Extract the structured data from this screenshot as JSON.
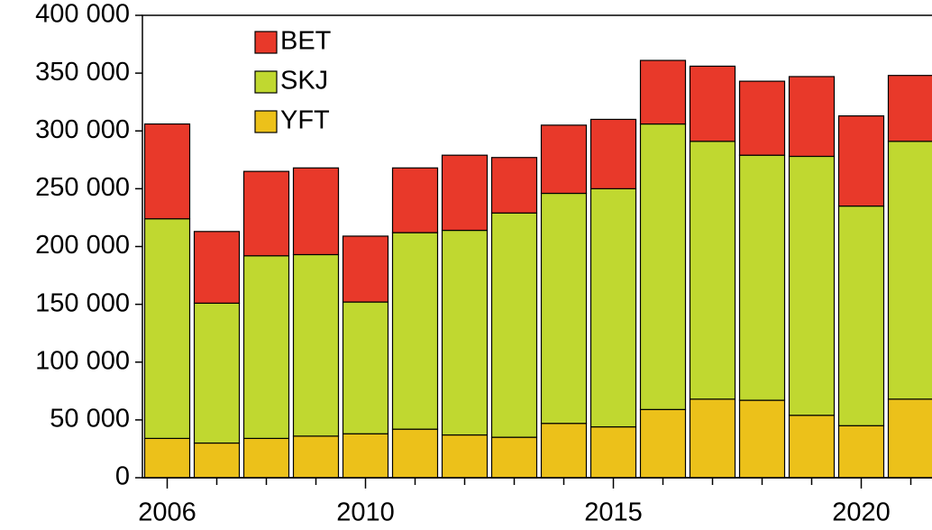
{
  "chart_data": {
    "type": "stacked_bar",
    "categories": [
      "2006",
      null,
      null,
      null,
      "2010",
      null,
      null,
      null,
      null,
      "2015",
      null,
      null,
      null,
      null,
      "2020",
      null
    ],
    "series": [
      {
        "name": "YFT",
        "color": "#ecc11a",
        "values": [
          34000,
          30000,
          34000,
          36000,
          38000,
          42000,
          37000,
          35000,
          47000,
          44000,
          59000,
          68000,
          67000,
          54000,
          45000,
          68000
        ]
      },
      {
        "name": "SKJ",
        "color": "#c0d830",
        "values": [
          190000,
          121000,
          158000,
          157000,
          114000,
          170000,
          177000,
          194000,
          199000,
          206000,
          247000,
          223000,
          212000,
          224000,
          190000,
          223000
        ]
      },
      {
        "name": "BET",
        "color": "#e8392a",
        "values": [
          82000,
          62000,
          73000,
          75000,
          57000,
          56000,
          65000,
          48000,
          59000,
          60000,
          55000,
          65000,
          64000,
          69000,
          78000,
          57000
        ]
      }
    ],
    "ylim": [
      0,
      400000
    ],
    "yticks": [
      {
        "value": 0,
        "label": "0"
      },
      {
        "value": 50000,
        "label": "50 000"
      },
      {
        "value": 100000,
        "label": "100 000"
      },
      {
        "value": 150000,
        "label": "150 000"
      },
      {
        "value": 200000,
        "label": "200 000"
      },
      {
        "value": 250000,
        "label": "250 000"
      },
      {
        "value": 300000,
        "label": "300 000"
      },
      {
        "value": 350000,
        "label": "350 000"
      },
      {
        "value": 400000,
        "label": "400 000"
      }
    ],
    "legend": "top-left"
  }
}
